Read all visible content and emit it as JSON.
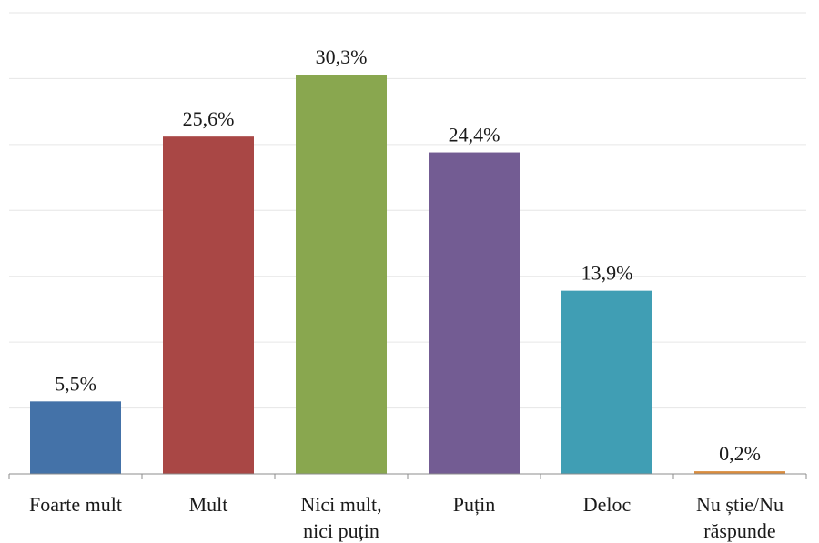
{
  "chart_data": {
    "type": "bar",
    "categories": [
      [
        "Foarte mult"
      ],
      [
        "Mult"
      ],
      [
        "Nici mult,",
        "nici puțin"
      ],
      [
        "Puțin"
      ],
      [
        "Deloc"
      ],
      [
        "Nu știe/Nu",
        "răspunde"
      ]
    ],
    "values": [
      5.5,
      25.6,
      30.3,
      24.4,
      13.9,
      0.2
    ],
    "value_labels": [
      "5,5%",
      "25,6%",
      "30,3%",
      "24,4%",
      "13,9%",
      "0,2%"
    ],
    "colors": [
      "#4472a8",
      "#a94745",
      "#89a74f",
      "#735c93",
      "#409eb4",
      "#d98c3e"
    ],
    "ylim": [
      0,
      35
    ],
    "grid": true,
    "legend": "none"
  }
}
